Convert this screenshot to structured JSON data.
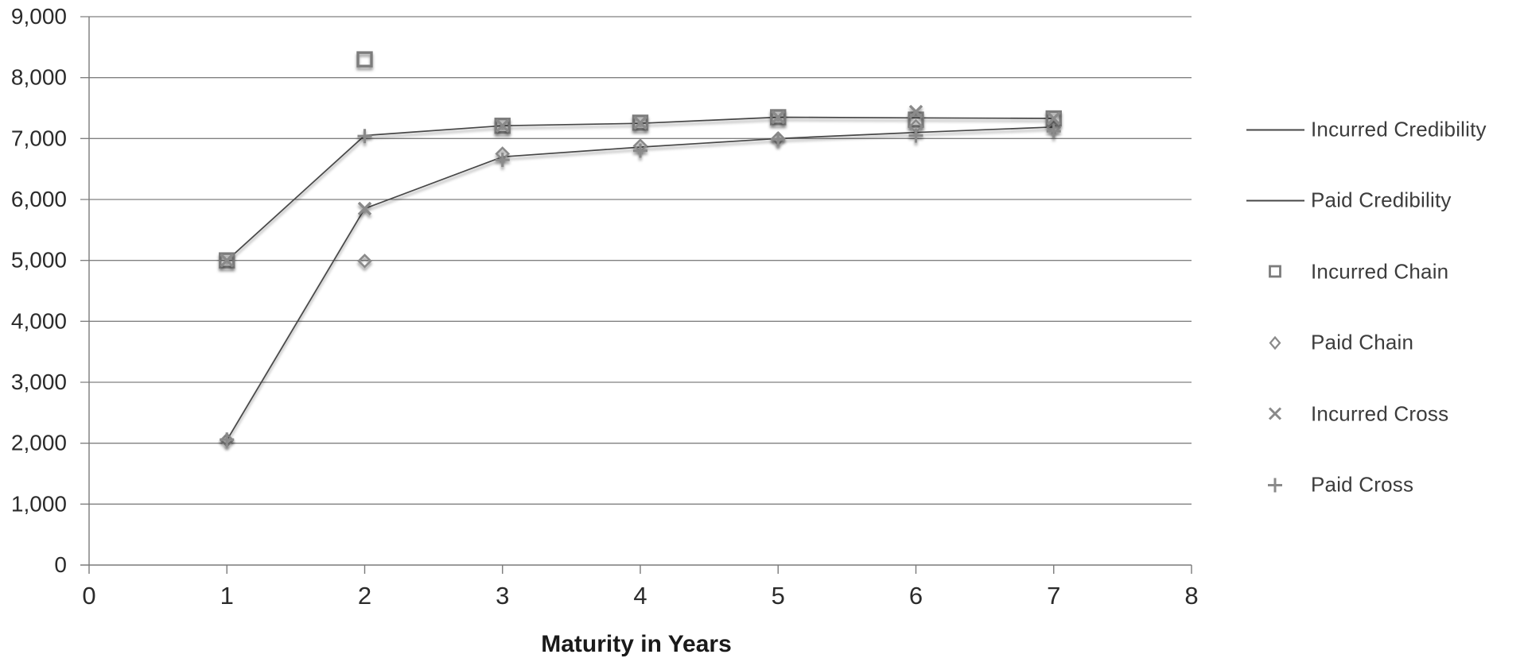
{
  "chart_data": {
    "type": "line",
    "title": "",
    "xlabel": "Maturity in Years",
    "ylabel": "",
    "xlim": [
      0,
      8
    ],
    "ylim": [
      0,
      9000
    ],
    "x_ticks": [
      0,
      1,
      2,
      3,
      4,
      5,
      6,
      7,
      8
    ],
    "y_ticks": [
      "0",
      "1,000",
      "2,000",
      "3,000",
      "4,000",
      "5,000",
      "6,000",
      "7,000",
      "8,000",
      "9,000"
    ],
    "grid": "horizontal",
    "legend_position": "right",
    "x": [
      1,
      2,
      3,
      4,
      5,
      6,
      7
    ],
    "series": [
      {
        "name": "Incurred Credibility",
        "style": "line",
        "marker": "none",
        "values": [
          5000,
          7050,
          7210,
          7250,
          7350,
          7340,
          7330
        ]
      },
      {
        "name": "Paid Credibility",
        "style": "line",
        "marker": "none",
        "values": [
          2050,
          5850,
          6700,
          6860,
          7000,
          7100,
          7190
        ]
      },
      {
        "name": "Incurred Chain",
        "style": "scatter",
        "marker": "square",
        "values": [
          5000,
          8300,
          7210,
          7260,
          7350,
          7310,
          7330
        ]
      },
      {
        "name": "Paid Chain",
        "style": "scatter",
        "marker": "diamond",
        "values": [
          2050,
          4990,
          6750,
          6880,
          7000,
          7200,
          7180
        ]
      },
      {
        "name": "Incurred Cross",
        "style": "scatter",
        "marker": "x",
        "values": [
          5000,
          5850,
          7210,
          7260,
          7350,
          7440,
          7330
        ]
      },
      {
        "name": "Paid Cross",
        "style": "scatter",
        "marker": "plus",
        "values": [
          2060,
          7040,
          6650,
          6800,
          6990,
          7050,
          7120
        ]
      }
    ]
  },
  "colors": {
    "grid": "#808080",
    "axis": "#7a7a7a",
    "line": "#474747",
    "marker": "#8a8a8a",
    "marker_dark": "#7c7c7c",
    "tick_text": "#2b2b2b",
    "legend_text": "#3c3c3c",
    "background": "#ffffff"
  }
}
